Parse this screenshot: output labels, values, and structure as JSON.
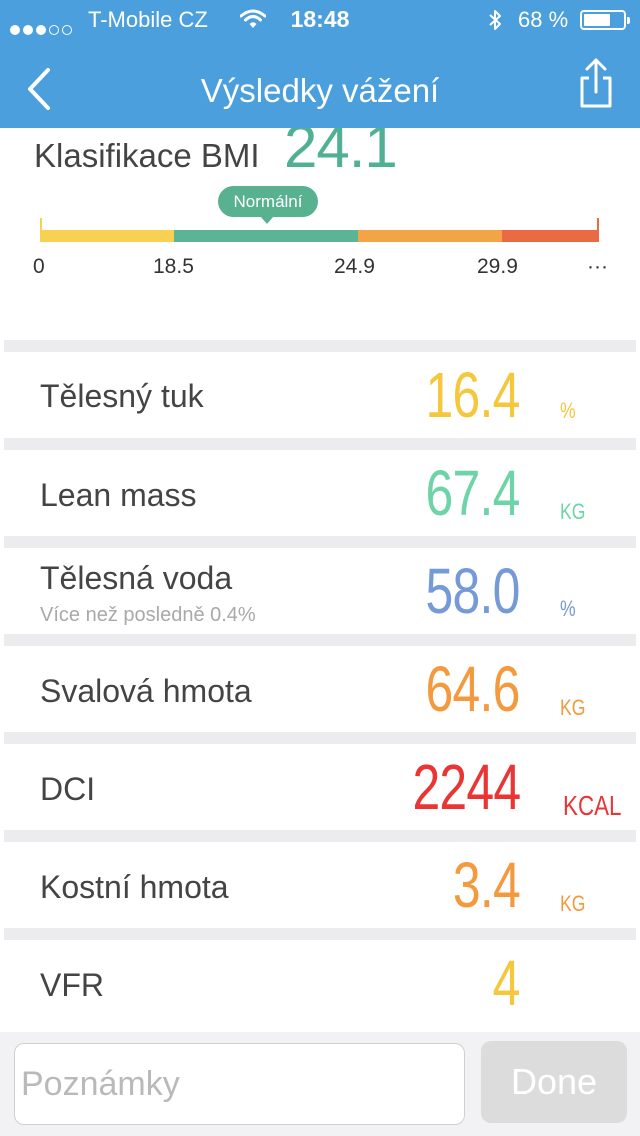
{
  "status_bar": {
    "carrier": "T-Mobile CZ",
    "time": "18:48",
    "battery": "68 %",
    "signal_bars": 3,
    "signal_total": 5,
    "battery_level": 0.68
  },
  "nav": {
    "title": "Výsledky vážení",
    "back_icon": "chevron-left-icon",
    "share_icon": "share-icon"
  },
  "bmi": {
    "label": "Klasifikace BMI",
    "value": "24.1",
    "category": "Normální",
    "thresholds": [
      "0",
      "18.5",
      "24.9",
      "29.9",
      "···"
    ],
    "colors": {
      "underweight": "#f8d153",
      "normal": "#5bb496",
      "overweight": "#f3a447",
      "obese": "#ea6a44"
    }
  },
  "metrics": [
    {
      "label": "Tělesný tuk",
      "sub": "",
      "value": "16.4",
      "unit": "%",
      "color": "#f5c73d"
    },
    {
      "label": "Lean mass",
      "sub": "",
      "value": "67.4",
      "unit": "KG",
      "color": "#6ed4a8"
    },
    {
      "label": "Tělesná voda",
      "sub": "Více než posledně 0.4%",
      "value": "58.0",
      "unit": "%",
      "color": "#7699d7"
    },
    {
      "label": "Svalová hmota",
      "sub": "",
      "value": "64.6",
      "unit": "KG",
      "color": "#f39a3e"
    },
    {
      "label": "DCI",
      "sub": "",
      "value": "2244",
      "unit": "KCAL",
      "color": "#ea3535"
    },
    {
      "label": "Kostní hmota",
      "sub": "",
      "value": "3.4",
      "unit": "KG",
      "color": "#f39a3e"
    },
    {
      "label": "VFR",
      "sub": "",
      "value": "4",
      "unit": "",
      "color": "#f5c73d"
    }
  ],
  "footer": {
    "notes_placeholder": "Poznámky",
    "done_label": "Done"
  }
}
